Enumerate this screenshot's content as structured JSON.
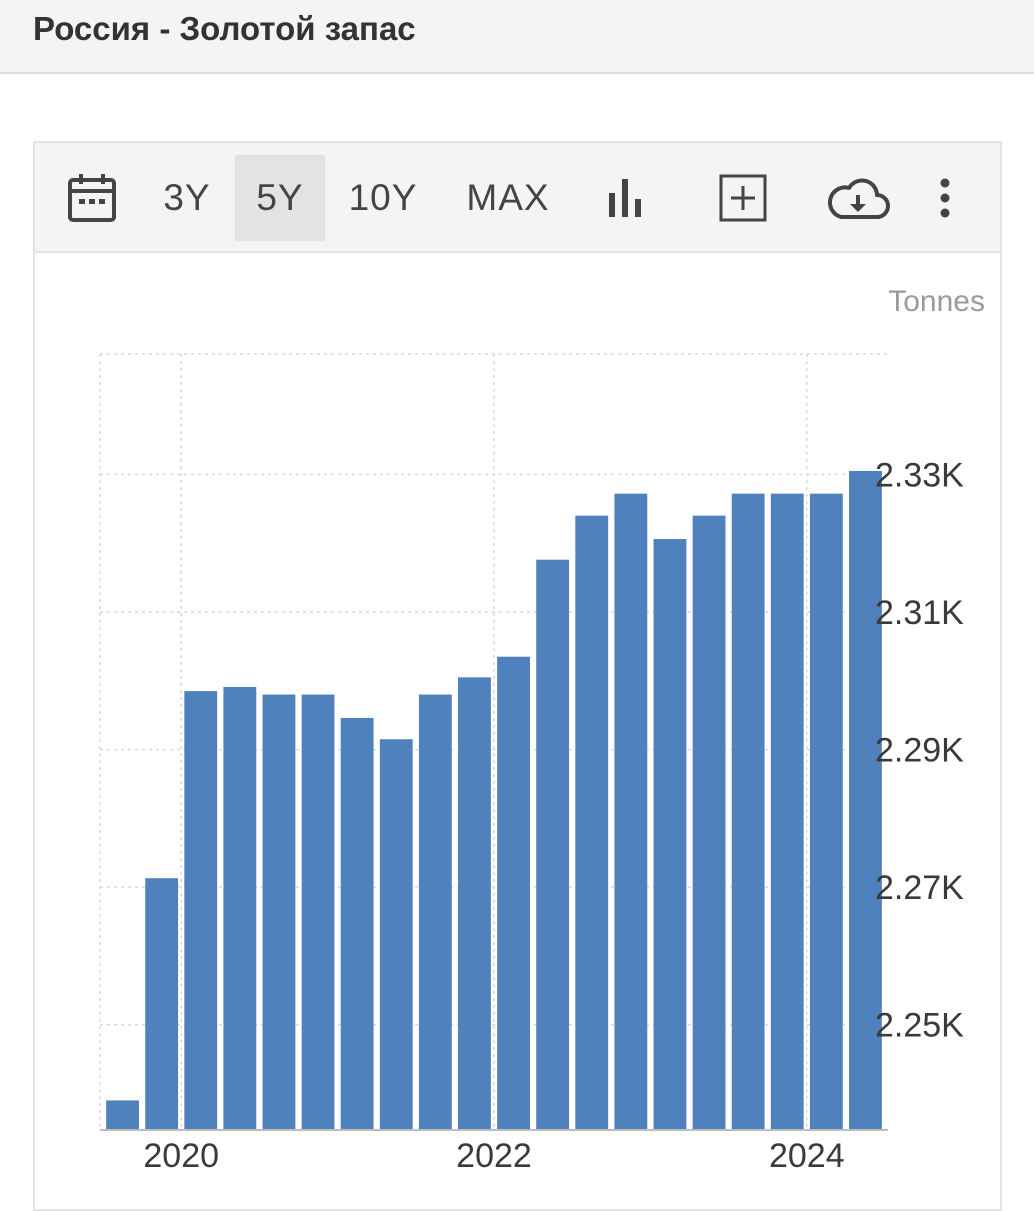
{
  "header": {
    "title": "Россия - Золотой запас"
  },
  "toolbar": {
    "ranges": [
      {
        "label": "3Y",
        "active": false
      },
      {
        "label": "5Y",
        "active": true
      },
      {
        "label": "10Y",
        "active": false
      },
      {
        "label": "MAX",
        "active": false
      }
    ],
    "icons": [
      "calendar-icon",
      "bar-chart-icon",
      "add-icon",
      "cloud-download-icon",
      "more-vertical-icon"
    ]
  },
  "chart_data": {
    "type": "bar",
    "unit_label": "Tonnes",
    "color": "#4f81bd",
    "values": [
      2239.0,
      2271.3,
      2298.5,
      2299.1,
      2298.0,
      2298.0,
      2294.6,
      2291.5,
      2298.0,
      2300.5,
      2303.5,
      2317.6,
      2324.0,
      2327.2,
      2320.6,
      2324.0,
      2327.2,
      2327.2,
      2327.2,
      2330.5
    ],
    "x_ticks": [
      {
        "label": "2020",
        "index": 2
      },
      {
        "label": "2022",
        "index": 10
      },
      {
        "label": "2024",
        "index": 18
      }
    ],
    "y_ticks": [
      {
        "label": "2.25K",
        "value": 2250
      },
      {
        "label": "2.27K",
        "value": 2270
      },
      {
        "label": "2.29K",
        "value": 2290
      },
      {
        "label": "2.31K",
        "value": 2310
      },
      {
        "label": "2.33K",
        "value": 2330
      }
    ],
    "ylim": [
      2234.7,
      2347.5
    ],
    "grid": true
  }
}
